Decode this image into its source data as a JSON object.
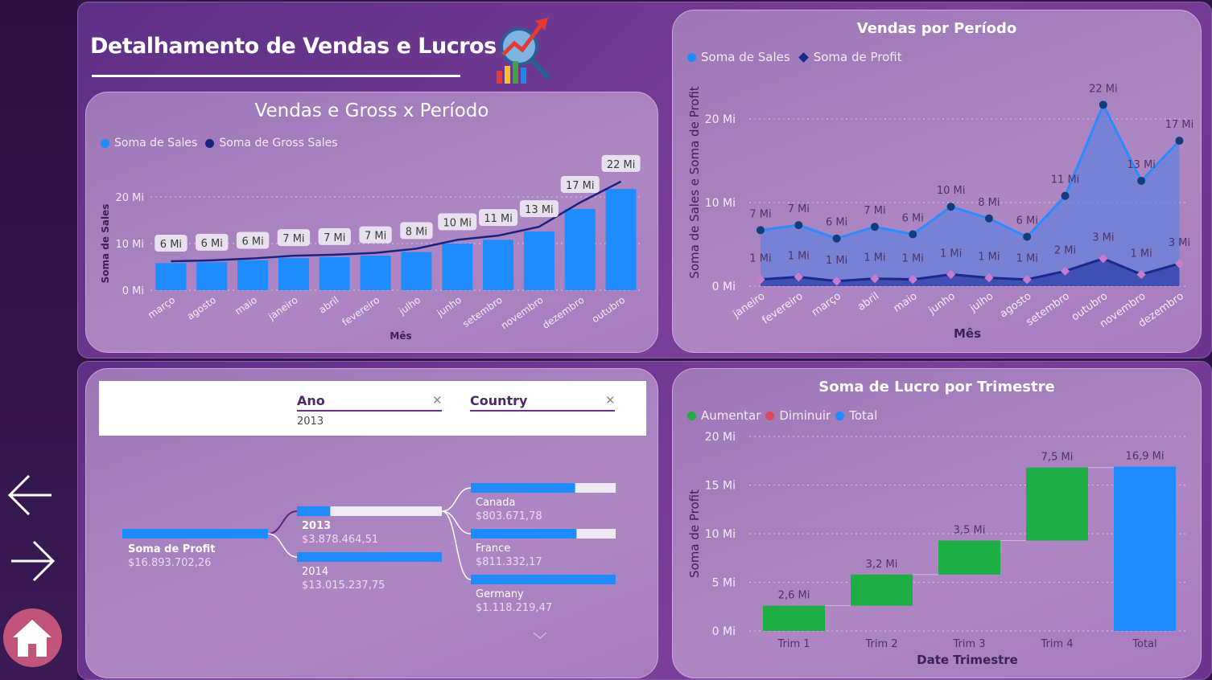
{
  "header": {
    "title": "Detalhamento de Vendas e Lucros"
  },
  "nav": {
    "back_icon": "arrow-left-icon",
    "forward_icon": "arrow-right-icon",
    "home_icon": "home-icon"
  },
  "chart1": {
    "title": "Vendas e Gross x Período",
    "legend": [
      "Soma de  Sales",
      "Soma de Gross Sales"
    ],
    "ylabel": "Soma de Sales",
    "xlabel": "Mês",
    "yticks": [
      "0 Mi",
      "10 Mi",
      "20 Mi"
    ]
  },
  "chart2": {
    "title": "Vendas por Período",
    "legend": [
      "Soma de  Sales",
      "Soma de Profit"
    ],
    "ylabel": "Soma de Sales e Soma de Profit",
    "xlabel": "Mês",
    "yticks": [
      "0 Mi",
      "10 Mi",
      "20 Mi"
    ]
  },
  "chart3": {
    "title": "Soma de Lucro por Trimestre",
    "legend": [
      "Aumentar",
      "Diminuir",
      "Total"
    ],
    "ylabel": "Soma de Profit",
    "xlabel": "Date Trimestre",
    "yticks": [
      "0 Mi",
      "5 Mi",
      "10 Mi",
      "15 Mi",
      "20 Mi"
    ]
  },
  "tree": {
    "slicers": [
      {
        "label": "Ano",
        "value": "2013"
      },
      {
        "label": "Country",
        "value": ""
      }
    ],
    "root": {
      "label": "Soma de Profit",
      "value": "$16.893.702,26",
      "fraction": 1.0
    },
    "years": [
      {
        "label": "2013",
        "value": "$3.878.464,51",
        "fraction": 0.23
      },
      {
        "label": "2014",
        "value": "$13.015.237,75",
        "fraction": 1.0
      }
    ],
    "countries": [
      {
        "label": "Canada",
        "value": "$803.671,78",
        "fraction": 0.72
      },
      {
        "label": "France",
        "value": "$811.332,17",
        "fraction": 0.73
      },
      {
        "label": "Germany",
        "value": "$1.118.219,47",
        "fraction": 1.0
      }
    ],
    "more_icon": "chevron-down-icon"
  },
  "colors": {
    "sales_blue": "#1e8bff",
    "gross_navy": "#1a237e",
    "profit_navy": "#1a2a8c",
    "increase": "#1fad45",
    "decrease": "#d94a5a",
    "total": "#1e8bff",
    "profit_marker": "#c77dcc"
  },
  "chart_data": [
    {
      "type": "bar",
      "title": "Vendas e Gross x Período",
      "xlabel": "Mês",
      "ylabel": "Soma de Sales",
      "ylim": [
        0,
        25
      ],
      "categories": [
        "março",
        "agosto",
        "maio",
        "janeiro",
        "abril",
        "fevereiro",
        "julho",
        "junho",
        "setembro",
        "novembro",
        "dezembro",
        "outubro"
      ],
      "series": [
        {
          "name": "Soma de  Sales",
          "type": "bar",
          "values": [
            5.8,
            6.0,
            6.4,
            6.9,
            7.1,
            7.4,
            8.2,
            10.0,
            10.8,
            12.6,
            17.4,
            21.7
          ]
        },
        {
          "name": "Soma de Gross Sales",
          "type": "line",
          "values": [
            6.2,
            6.4,
            6.8,
            7.4,
            7.6,
            8.0,
            8.9,
            10.8,
            11.7,
            13.6,
            18.8,
            23.3
          ]
        }
      ],
      "data_labels": [
        "6 Mi",
        "6 Mi",
        "6 Mi",
        "7 Mi",
        "7 Mi",
        "7 Mi",
        "8 Mi",
        "10 Mi",
        "11 Mi",
        "13 Mi",
        "17 Mi",
        "22 Mi"
      ],
      "legend": "top-left",
      "grid": true
    },
    {
      "type": "area",
      "title": "Vendas por Período",
      "xlabel": "Mês",
      "ylabel": "Soma de Sales e Soma de Profit",
      "ylim": [
        0,
        24
      ],
      "categories": [
        "janeiro",
        "fevereiro",
        "março",
        "abril",
        "maio",
        "junho",
        "julho",
        "agosto",
        "setembro",
        "outubro",
        "novembro",
        "dezembro"
      ],
      "series": [
        {
          "name": "Soma de  Sales",
          "values": [
            6.7,
            7.3,
            5.7,
            7.1,
            6.2,
            9.5,
            8.1,
            5.9,
            10.8,
            21.7,
            12.6,
            17.4
          ],
          "labels": [
            "7 Mi",
            "7 Mi",
            "6 Mi",
            "7 Mi",
            "6 Mi",
            "10 Mi",
            "8 Mi",
            "6 Mi",
            "11 Mi",
            "22 Mi",
            "13 Mi",
            "17 Mi"
          ]
        },
        {
          "name": "Soma de Profit",
          "values": [
            0.8,
            1.1,
            0.6,
            0.9,
            0.8,
            1.4,
            1.0,
            0.8,
            1.8,
            3.3,
            1.4,
            2.7
          ],
          "labels": [
            "1 Mi",
            "1 Mi",
            "1 Mi",
            "1 Mi",
            "1 Mi",
            "1 Mi",
            "1 Mi",
            "1 Mi",
            "2 Mi",
            "3 Mi",
            "1 Mi",
            "3 Mi"
          ]
        }
      ],
      "legend": "top-left",
      "grid": true
    },
    {
      "type": "bar",
      "subtype": "waterfall",
      "title": "Soma de Lucro por Trimestre",
      "xlabel": "Date Trimestre",
      "ylabel": "Soma de Profit",
      "ylim": [
        0,
        20
      ],
      "categories": [
        "Trim 1",
        "Trim 2",
        "Trim 3",
        "Trim 4",
        "Total"
      ],
      "values": [
        2.6,
        3.2,
        3.5,
        7.5,
        16.9
      ],
      "kinds": [
        "increase",
        "increase",
        "increase",
        "increase",
        "total"
      ],
      "data_labels": [
        "2,6 Mi",
        "3,2 Mi",
        "3,5 Mi",
        "7,5 Mi",
        "16,9 Mi"
      ],
      "legend": "top-left",
      "grid": true
    }
  ]
}
